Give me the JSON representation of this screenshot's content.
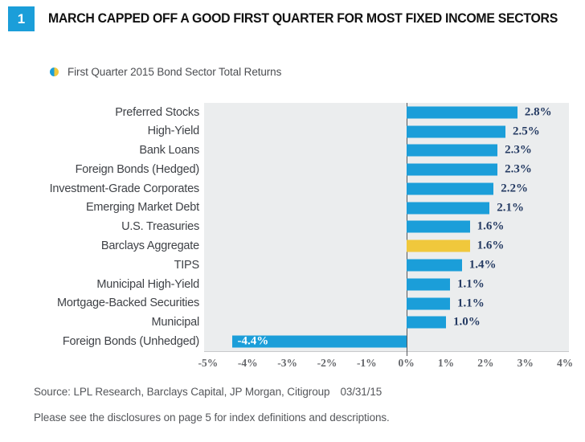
{
  "header": {
    "badge": "1",
    "title": "MARCH CAPPED OFF A GOOD FIRST QUARTER FOR MOST FIXED INCOME SECTORS"
  },
  "legend": {
    "label": "First Quarter 2015 Bond Sector Total Returns"
  },
  "chart_data": {
    "type": "bar",
    "orientation": "horizontal",
    "title": "First Quarter 2015 Bond Sector Total Returns",
    "categories": [
      "Preferred Stocks",
      "High-Yield",
      "Bank Loans",
      "Foreign Bonds (Hedged)",
      "Investment-Grade Corporates",
      "Emerging Market Debt",
      "U.S. Treasuries",
      "Barclays Aggregate",
      "TIPS",
      "Municipal High-Yield",
      "Mortgage-Backed Securities",
      "Municipal",
      "Foreign Bonds (Unhedged)"
    ],
    "values": [
      2.8,
      2.5,
      2.3,
      2.3,
      2.2,
      2.1,
      1.6,
      1.6,
      1.4,
      1.1,
      1.1,
      1.0,
      -4.4
    ],
    "value_labels": [
      "2.8%",
      "2.5%",
      "2.3%",
      "2.3%",
      "2.2%",
      "2.1%",
      "1.6%",
      "1.6%",
      "1.4%",
      "1.1%",
      "1.1%",
      "1.0%",
      "-4.4%"
    ],
    "highlight_index": 7,
    "highlight_category": "Barclays Aggregate",
    "xlim": [
      -5.1,
      4.1
    ],
    "x_tick_values": [
      -5,
      -4,
      -3,
      -2,
      -1,
      0,
      1,
      2,
      3,
      4
    ],
    "x_tick_labels": [
      "-5%",
      "-4%",
      "-3%",
      "-2%",
      "-1%",
      "0%",
      "1%",
      "2%",
      "3%",
      "4%"
    ],
    "grid": "zero-line-only",
    "legend_position": "top-left",
    "colors": {
      "bar": "#1b9ed9",
      "highlight_bar": "#f0c83c",
      "plot_background": "#ebedee",
      "value_label": "#253b63",
      "negative_value_label": "#ffffff",
      "badge_background": "#1b9ed9",
      "zero_line": "#55575b"
    }
  },
  "footer": {
    "source": "Source: LPL Research, Barclays Capital, JP Morgan, Citigroup",
    "source_date": "03/31/15",
    "disclosure": "Please see the disclosures on page 5 for index definitions and descriptions."
  }
}
